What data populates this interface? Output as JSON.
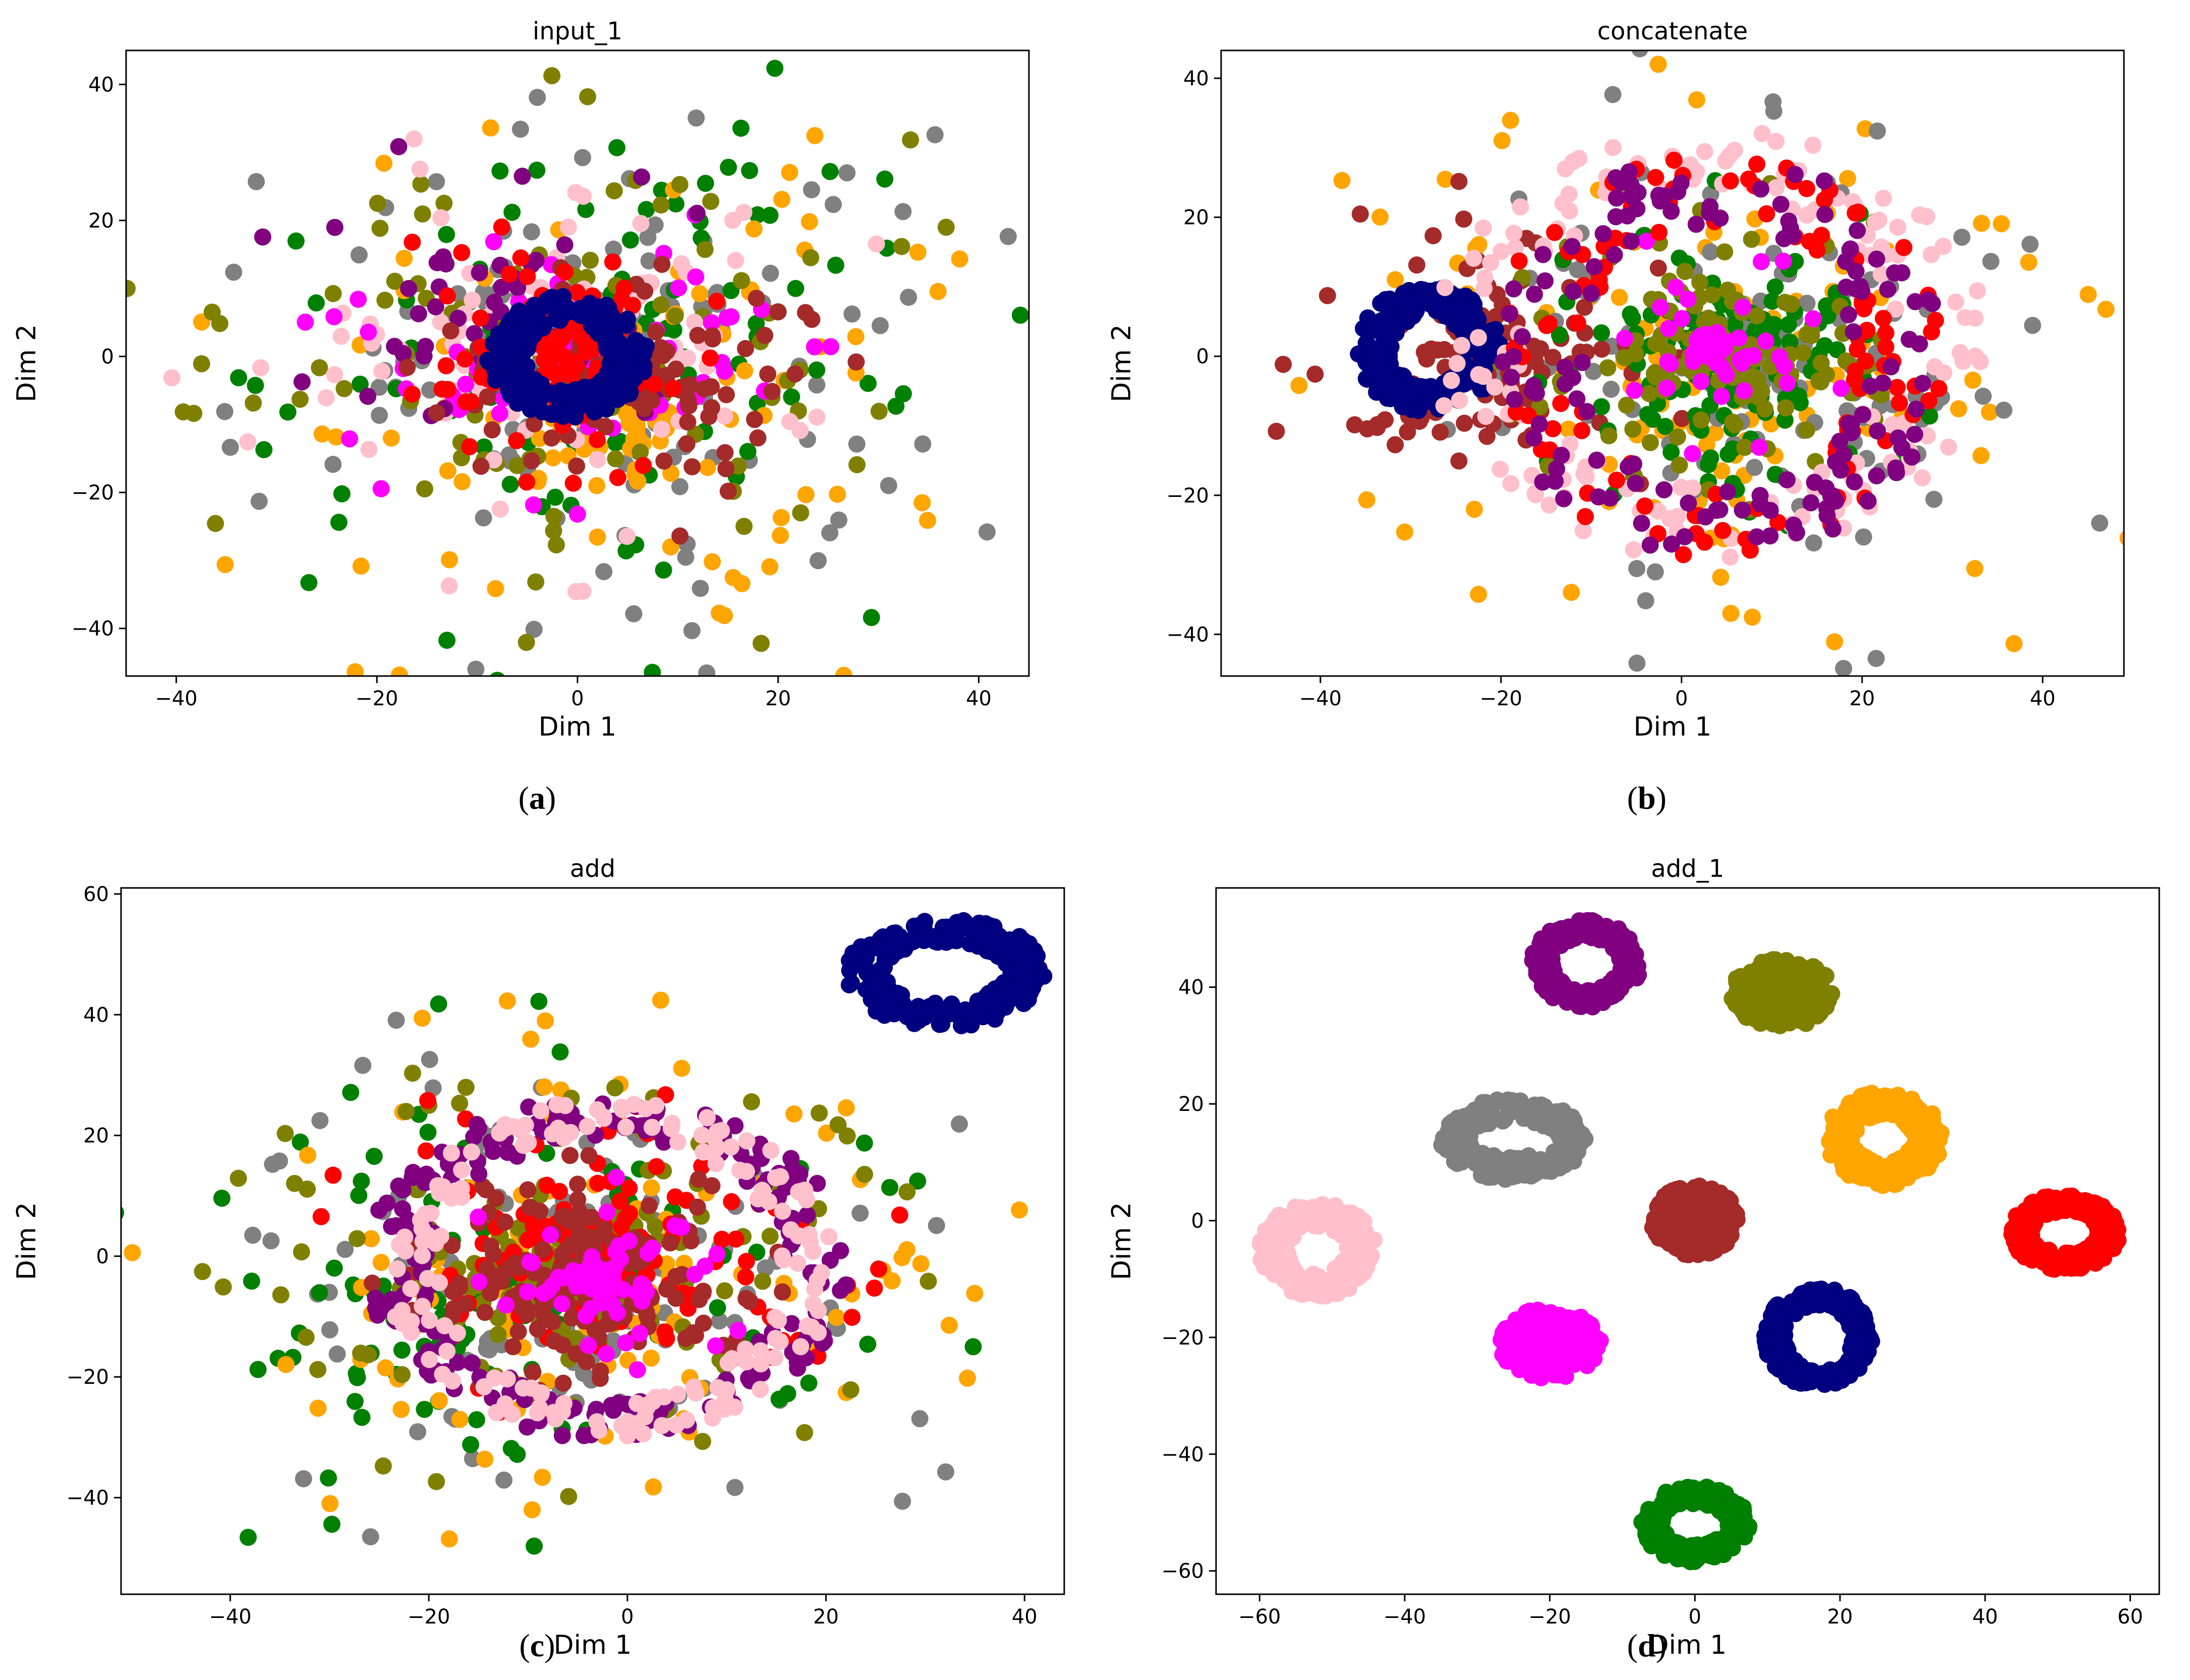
{
  "figure": {
    "captions": [
      "(a)",
      "(b)",
      "(c)",
      "(d)"
    ],
    "caption_letters": [
      "a",
      "b",
      "c",
      "d"
    ]
  },
  "palette": {
    "navy": "#000080",
    "green": "#008000",
    "olive": "#808000",
    "gray": "#808080",
    "orange": "#FFA500",
    "red": "#FF0000",
    "magenta": "#FF00FF",
    "brown": "#A52A2A",
    "pink": "#FFC0CB",
    "purple": "#800080"
  },
  "chart_data": [
    {
      "type": "scatter",
      "title": "input_1",
      "xlabel": "Dim 1",
      "ylabel": "Dim 2",
      "xlim": [
        -45,
        45
      ],
      "ylim": [
        -47,
        45
      ],
      "xticks": [
        -40,
        -20,
        0,
        20,
        40
      ],
      "yticks": [
        -40,
        -20,
        0,
        20,
        40
      ],
      "grid": false,
      "series": [
        {
          "name": "class navy",
          "color": "navy",
          "shape": "ring",
          "cx": -1,
          "cy": 0,
          "rx": 6,
          "ry": 7,
          "thickness": 4,
          "count": 260
        },
        {
          "name": "class red",
          "color": "red",
          "shape": "cloud",
          "cx": -2,
          "cy": 2,
          "r": 18,
          "count": 110
        },
        {
          "name": "class magenta",
          "color": "magenta",
          "shape": "cloud",
          "cx": 0,
          "cy": 0,
          "r": 24,
          "count": 80
        },
        {
          "name": "class brown",
          "color": "brown",
          "shape": "cloud",
          "cx": 5,
          "cy": -4,
          "r": 20,
          "count": 130
        },
        {
          "name": "class purple",
          "color": "purple",
          "shape": "cloud",
          "cx": -8,
          "cy": 6,
          "r": 24,
          "count": 50
        },
        {
          "name": "class pink",
          "color": "pink",
          "shape": "cloud",
          "cx": -4,
          "cy": 2,
          "r": 32,
          "count": 110
        },
        {
          "name": "class orange",
          "color": "orange",
          "shape": "cloud",
          "cx": 6,
          "cy": -10,
          "r": 40,
          "count": 120
        },
        {
          "name": "class olive",
          "color": "olive",
          "shape": "cloud",
          "cx": 0,
          "cy": 0,
          "r": 40,
          "count": 150
        },
        {
          "name": "class gray",
          "color": "gray",
          "shape": "cloud",
          "cx": 0,
          "cy": 0,
          "r": 42,
          "count": 150
        },
        {
          "name": "class green",
          "color": "green",
          "shape": "cloud",
          "cx": 0,
          "cy": 0,
          "r": 42,
          "count": 130
        }
      ]
    },
    {
      "type": "scatter",
      "title": "concatenate",
      "xlabel": "Dim 1",
      "ylabel": "Dim 2",
      "xlim": [
        -51,
        49
      ],
      "ylim": [
        -46,
        44
      ],
      "xticks": [
        -40,
        -20,
        0,
        20,
        40
      ],
      "yticks": [
        -40,
        -20,
        0,
        20,
        40
      ],
      "grid": false,
      "series": [
        {
          "name": "class navy",
          "color": "navy",
          "shape": "ring",
          "cx": -28,
          "cy": 1,
          "rx": 6,
          "ry": 7,
          "thickness": 4,
          "count": 240
        },
        {
          "name": "class brown",
          "color": "brown",
          "shape": "cloud",
          "cx": -22,
          "cy": 0,
          "r": 22,
          "count": 130
        },
        {
          "name": "class pink",
          "color": "pink",
          "shape": "ring",
          "cx": 3,
          "cy": 2,
          "rx": 26,
          "ry": 26,
          "thickness": 10,
          "count": 150
        },
        {
          "name": "class red",
          "color": "red",
          "shape": "ring",
          "cx": 4,
          "cy": 0,
          "rx": 20,
          "ry": 24,
          "thickness": 10,
          "count": 110
        },
        {
          "name": "class purple",
          "color": "purple",
          "shape": "ring",
          "cx": 4,
          "cy": 0,
          "rx": 20,
          "ry": 24,
          "thickness": 10,
          "count": 140
        },
        {
          "name": "class green",
          "color": "green",
          "shape": "cloud",
          "cx": 5,
          "cy": 0,
          "r": 22,
          "count": 160
        },
        {
          "name": "class olive",
          "color": "olive",
          "shape": "cloud",
          "cx": 5,
          "cy": 0,
          "r": 22,
          "count": 160
        },
        {
          "name": "class gray",
          "color": "gray",
          "shape": "cloud",
          "cx": 8,
          "cy": 0,
          "r": 40,
          "count": 150
        },
        {
          "name": "class orange",
          "color": "orange",
          "shape": "cloud",
          "cx": 5,
          "cy": -2,
          "r": 44,
          "count": 140
        },
        {
          "name": "class magenta",
          "color": "magenta",
          "shape": "cloud",
          "cx": 3,
          "cy": 2,
          "r": 14,
          "count": 50
        }
      ]
    },
    {
      "type": "scatter",
      "title": "add",
      "xlabel": "Dim 1",
      "ylabel": "Dim 2",
      "xlim": [
        -51,
        44
      ],
      "ylim": [
        -56,
        61
      ],
      "xticks": [
        -40,
        -20,
        0,
        20,
        40
      ],
      "yticks": [
        -40,
        -20,
        0,
        20,
        40,
        60
      ],
      "grid": false,
      "series": [
        {
          "name": "class navy",
          "color": "navy",
          "shape": "ring",
          "cx": 32,
          "cy": 47,
          "rx": 8,
          "ry": 7,
          "thickness": 4,
          "count": 260
        },
        {
          "name": "class purple",
          "color": "purple",
          "shape": "ring",
          "cx": -2,
          "cy": -2,
          "rx": 21,
          "ry": 25,
          "thickness": 7,
          "count": 200
        },
        {
          "name": "class pink",
          "color": "pink",
          "shape": "ring",
          "cx": -2,
          "cy": -2,
          "rx": 20,
          "ry": 25,
          "thickness": 6,
          "count": 170
        },
        {
          "name": "class red",
          "color": "red",
          "shape": "cloud",
          "cx": -2,
          "cy": 2,
          "r": 26,
          "count": 130
        },
        {
          "name": "class magenta",
          "color": "magenta",
          "shape": "cloud",
          "cx": -2,
          "cy": -3,
          "r": 14,
          "count": 80
        },
        {
          "name": "class brown",
          "color": "brown",
          "shape": "cloud",
          "cx": -5,
          "cy": -4,
          "r": 18,
          "count": 220
        },
        {
          "name": "class olive",
          "color": "olive",
          "shape": "cloud",
          "cx": -6,
          "cy": -3,
          "r": 32,
          "count": 180
        },
        {
          "name": "class orange",
          "color": "orange",
          "shape": "cloud",
          "cx": -4,
          "cy": -3,
          "r": 40,
          "count": 140
        },
        {
          "name": "class gray",
          "color": "gray",
          "shape": "cloud",
          "cx": -6,
          "cy": -6,
          "r": 42,
          "count": 150
        },
        {
          "name": "class green",
          "color": "green",
          "shape": "cloud",
          "cx": -12,
          "cy": -6,
          "r": 42,
          "count": 130
        }
      ]
    },
    {
      "type": "scatter",
      "title": "add_1",
      "xlabel": "Dim 1",
      "ylabel": "Dim 2",
      "xlim": [
        -66,
        64
      ],
      "ylim": [
        -64,
        57
      ],
      "xticks": [
        -60,
        -40,
        -20,
        0,
        20,
        40,
        60
      ],
      "yticks": [
        -60,
        -40,
        -20,
        0,
        20,
        40
      ],
      "grid": false,
      "series": [
        {
          "name": "class purple",
          "color": "purple",
          "shape": "ring",
          "cx": -15,
          "cy": 44,
          "rx": 6,
          "ry": 6,
          "thickness": 3,
          "count": 260
        },
        {
          "name": "class olive",
          "color": "olive",
          "shape": "blob",
          "cx": 12,
          "cy": 39,
          "rx": 7,
          "ry": 6,
          "count": 260
        },
        {
          "name": "class gray",
          "color": "gray",
          "shape": "ring",
          "cx": -25,
          "cy": 14,
          "rx": 8,
          "ry": 5,
          "thickness": 4,
          "count": 260
        },
        {
          "name": "class orange",
          "color": "orange",
          "shape": "ring",
          "cx": 26,
          "cy": 14,
          "rx": 6,
          "ry": 6,
          "thickness": 4,
          "count": 260
        },
        {
          "name": "class brown",
          "color": "brown",
          "shape": "blob",
          "cx": 0,
          "cy": 0,
          "rx": 6,
          "ry": 6,
          "count": 260
        },
        {
          "name": "class pink",
          "color": "pink",
          "shape": "ring",
          "cx": -52,
          "cy": -5,
          "rx": 6,
          "ry": 6,
          "thickness": 4,
          "count": 260
        },
        {
          "name": "class red",
          "color": "red",
          "shape": "ring",
          "cx": 51,
          "cy": -2,
          "rx": 6,
          "ry": 5,
          "thickness": 3,
          "count": 260
        },
        {
          "name": "class magenta",
          "color": "magenta",
          "shape": "blob",
          "cx": -20,
          "cy": -21,
          "rx": 7,
          "ry": 6,
          "count": 260
        },
        {
          "name": "class navy",
          "color": "navy",
          "shape": "ring",
          "cx": 17,
          "cy": -20,
          "rx": 6,
          "ry": 7,
          "thickness": 3,
          "count": 260
        },
        {
          "name": "class green",
          "color": "green",
          "shape": "ring",
          "cx": 0,
          "cy": -52,
          "rx": 6,
          "ry": 5,
          "thickness": 3,
          "count": 260
        }
      ]
    }
  ]
}
